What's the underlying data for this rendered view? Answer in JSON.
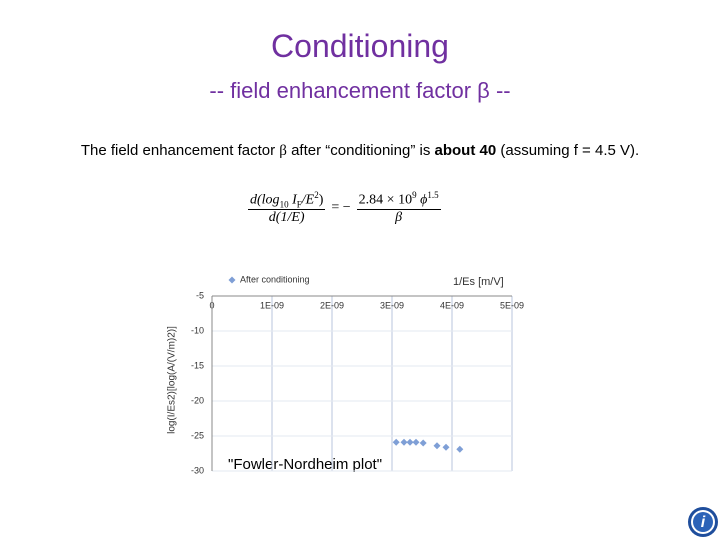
{
  "slide": {
    "title": "Conditioning",
    "subtitle": "-- field enhancement factor β --",
    "body": [
      "The field enhancement factor ",
      "β",
      " after “conditioning” is ",
      "about 40",
      " (assuming f = 4.5 V)."
    ],
    "formula": {
      "numerator": [
        "d(log",
        "10",
        " I",
        "F",
        "/E",
        "2",
        ")"
      ],
      "denominator": "d(1/E)",
      "equals": "= −",
      "rhs_numerator": [
        "2.84 × 10",
        "9",
        " ϕ",
        "1.5"
      ],
      "rhs_denominator": "β"
    }
  },
  "chart_data": {
    "type": "scatter",
    "x_label": "1/Es [m/V]",
    "y_label": "log(I/Es2)[log(A/(V/m)2)]",
    "annotation": "\"Fowler-Nordheim plot\"",
    "series": [
      {
        "name": "After conditioning",
        "color": "#7f9fd6",
        "x": [
          3.07e-09,
          3.2e-09,
          3.3e-09,
          3.4e-09,
          3.52e-09,
          3.75e-09,
          3.9e-09,
          4.13e-09
        ],
        "values": [
          -25.9,
          -25.9,
          -25.9,
          -25.9,
          -26.0,
          -26.4,
          -26.6,
          -26.9
        ]
      }
    ],
    "xlim": [
      0,
      5e-09
    ],
    "xticks": [
      0,
      {
        "value": 1e-09,
        "label": "1E-09"
      },
      {
        "value": 2e-09,
        "label": "2E-09"
      },
      {
        "value": 3e-09,
        "label": "3E-09"
      },
      {
        "value": 4e-09,
        "label": "4E-09"
      },
      {
        "value": 5e-09,
        "label": "5E-09"
      }
    ],
    "ylim": [
      -30,
      -5
    ],
    "yticks": [
      -5,
      -10,
      -15,
      -20,
      -25,
      -30
    ],
    "grid": true,
    "legend": "top"
  }
}
